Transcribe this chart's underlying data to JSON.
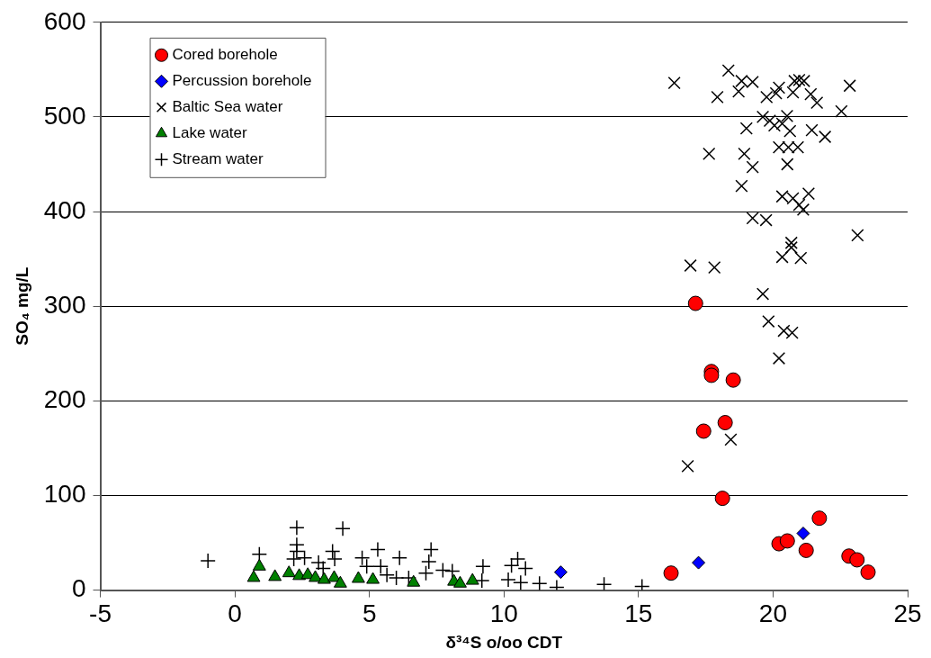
{
  "chart_data": {
    "type": "scatter",
    "xlabel": "δ³⁴S o/oo CDT",
    "ylabel": "SO₄ mg/L",
    "xlim": [
      -5,
      25
    ],
    "xticks": [
      -5,
      0,
      5,
      10,
      15,
      20,
      25
    ],
    "ylim": [
      0,
      600
    ],
    "yticks": [
      0,
      100,
      200,
      300,
      400,
      500,
      600
    ],
    "grid": "y",
    "legend": "top left",
    "series": [
      {
        "name": "Cored borehole",
        "color": "#ff0000",
        "marker": "circle",
        "x": [
          17.12,
          17.71,
          17.71,
          18.52,
          18.22,
          17.42,
          18.12,
          16.21,
          20.22,
          20.53,
          21.23,
          21.72,
          22.82,
          23.12,
          23.53
        ],
        "values": [
          303,
          231,
          227,
          222,
          177,
          168,
          97,
          18,
          49,
          52,
          42,
          76,
          36,
          32,
          19
        ]
      },
      {
        "name": "Percussion borehole",
        "color": "#0000ff",
        "marker": "diamond",
        "x": [
          17.23,
          21.12,
          12.11
        ],
        "values": [
          29,
          60,
          19
        ]
      },
      {
        "name": "Baltic Sea water",
        "color": "#000000",
        "marker": "x",
        "x": [
          16.33,
          18.34,
          17.93,
          18.72,
          18.83,
          19.24,
          19.76,
          20.22,
          20.11,
          20.8,
          20.97,
          21.15,
          20.74,
          21.4,
          21.63,
          22.85,
          22.54,
          19.62,
          19.88,
          20.05,
          20.34,
          20.52,
          20.63,
          19.01,
          21.44,
          21.93,
          20.22,
          20.57,
          20.92,
          17.62,
          18.93,
          19.24,
          20.53,
          18.83,
          20.34,
          20.74,
          21.32,
          20.97,
          21.12,
          19.24,
          19.74,
          23.14,
          20.68,
          20.68,
          20.34,
          21.03,
          16.93,
          17.82,
          19.62,
          19.83,
          20.4,
          20.71,
          20.22,
          18.43,
          16.83
        ],
        "values": [
          536,
          549,
          521,
          527,
          538,
          537,
          521,
          531,
          525,
          538,
          539,
          538,
          526,
          524,
          515,
          533,
          506,
          500,
          496,
          491,
          493,
          501,
          485,
          488,
          486,
          479,
          468,
          468,
          468,
          461,
          461,
          447,
          450,
          427,
          416,
          414,
          419,
          407,
          402,
          393,
          391,
          375,
          367,
          362,
          352,
          351,
          343,
          341,
          313,
          284,
          274,
          272,
          245,
          159,
          131
        ]
      },
      {
        "name": "Lake water",
        "color": "#008000",
        "marker": "triangle",
        "x": [
          0.91,
          0.7,
          1.49,
          2.01,
          2.39,
          2.71,
          2.99,
          3.32,
          3.69,
          3.92,
          4.59,
          5.13,
          6.64,
          8.14,
          8.37,
          8.83
        ],
        "values": [
          25,
          13,
          14,
          18,
          15,
          16,
          13,
          11,
          13,
          7,
          12,
          11,
          8,
          9,
          7,
          10
        ]
      },
      {
        "name": "Stream water",
        "color": "#000000",
        "marker": "cross",
        "x": [
          -1.0,
          0.91,
          2.3,
          2.3,
          2.3,
          2.19,
          2.59,
          4.01,
          3.11,
          3.28,
          3.63,
          3.71,
          4.73,
          5.31,
          4.9,
          5.42,
          6.12,
          5.65,
          6.0,
          6.46,
          7.29,
          7.21,
          7.1,
          7.73,
          8.08,
          9.22,
          9.18,
          10.51,
          10.28,
          10.8,
          10.16,
          10.62,
          11.32,
          11.96,
          13.72,
          15.13
        ],
        "values": [
          31,
          38,
          66,
          48,
          41,
          33,
          34,
          65,
          29,
          23,
          41,
          33,
          34,
          43,
          25,
          25,
          34,
          16,
          13,
          13,
          43,
          30,
          18,
          21,
          20,
          25,
          10,
          33,
          26,
          23,
          11,
          8,
          7,
          3,
          6,
          4
        ]
      }
    ]
  }
}
